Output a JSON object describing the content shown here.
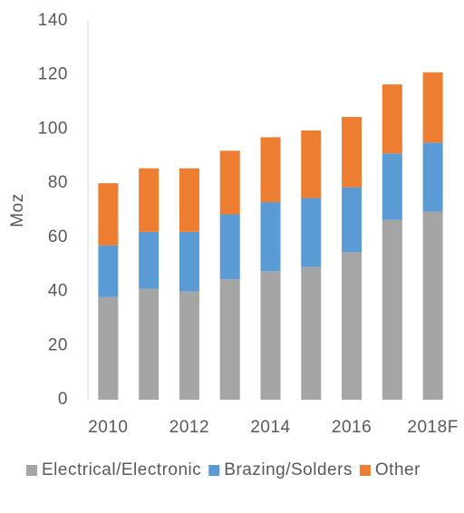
{
  "chart_data": {
    "type": "stacked_bar",
    "y_label": "Moz",
    "categories": [
      "2010",
      null,
      "2012",
      null,
      "2014",
      null,
      "2016",
      null,
      "2018F"
    ],
    "series": [
      {
        "name": "Electrical/Electronic",
        "color": "#a5a5a5",
        "values": [
          38,
          41,
          40,
          44.5,
          47.5,
          49,
          54.5,
          66.5,
          69.5
        ]
      },
      {
        "name": "Brazing/Solders",
        "color": "#5b9bd5",
        "values": [
          19,
          21,
          22,
          24,
          25.5,
          25.5,
          24,
          24.5,
          25.5
        ]
      },
      {
        "name": "Other",
        "color": "#ed7d31",
        "values": [
          23,
          23.5,
          23.5,
          23.5,
          24,
          25,
          26,
          25.5,
          26
        ]
      }
    ],
    "ylim": [
      0,
      140
    ],
    "yticks": [
      0,
      20,
      40,
      60,
      80,
      100,
      120,
      140
    ],
    "legend": "bottom"
  }
}
